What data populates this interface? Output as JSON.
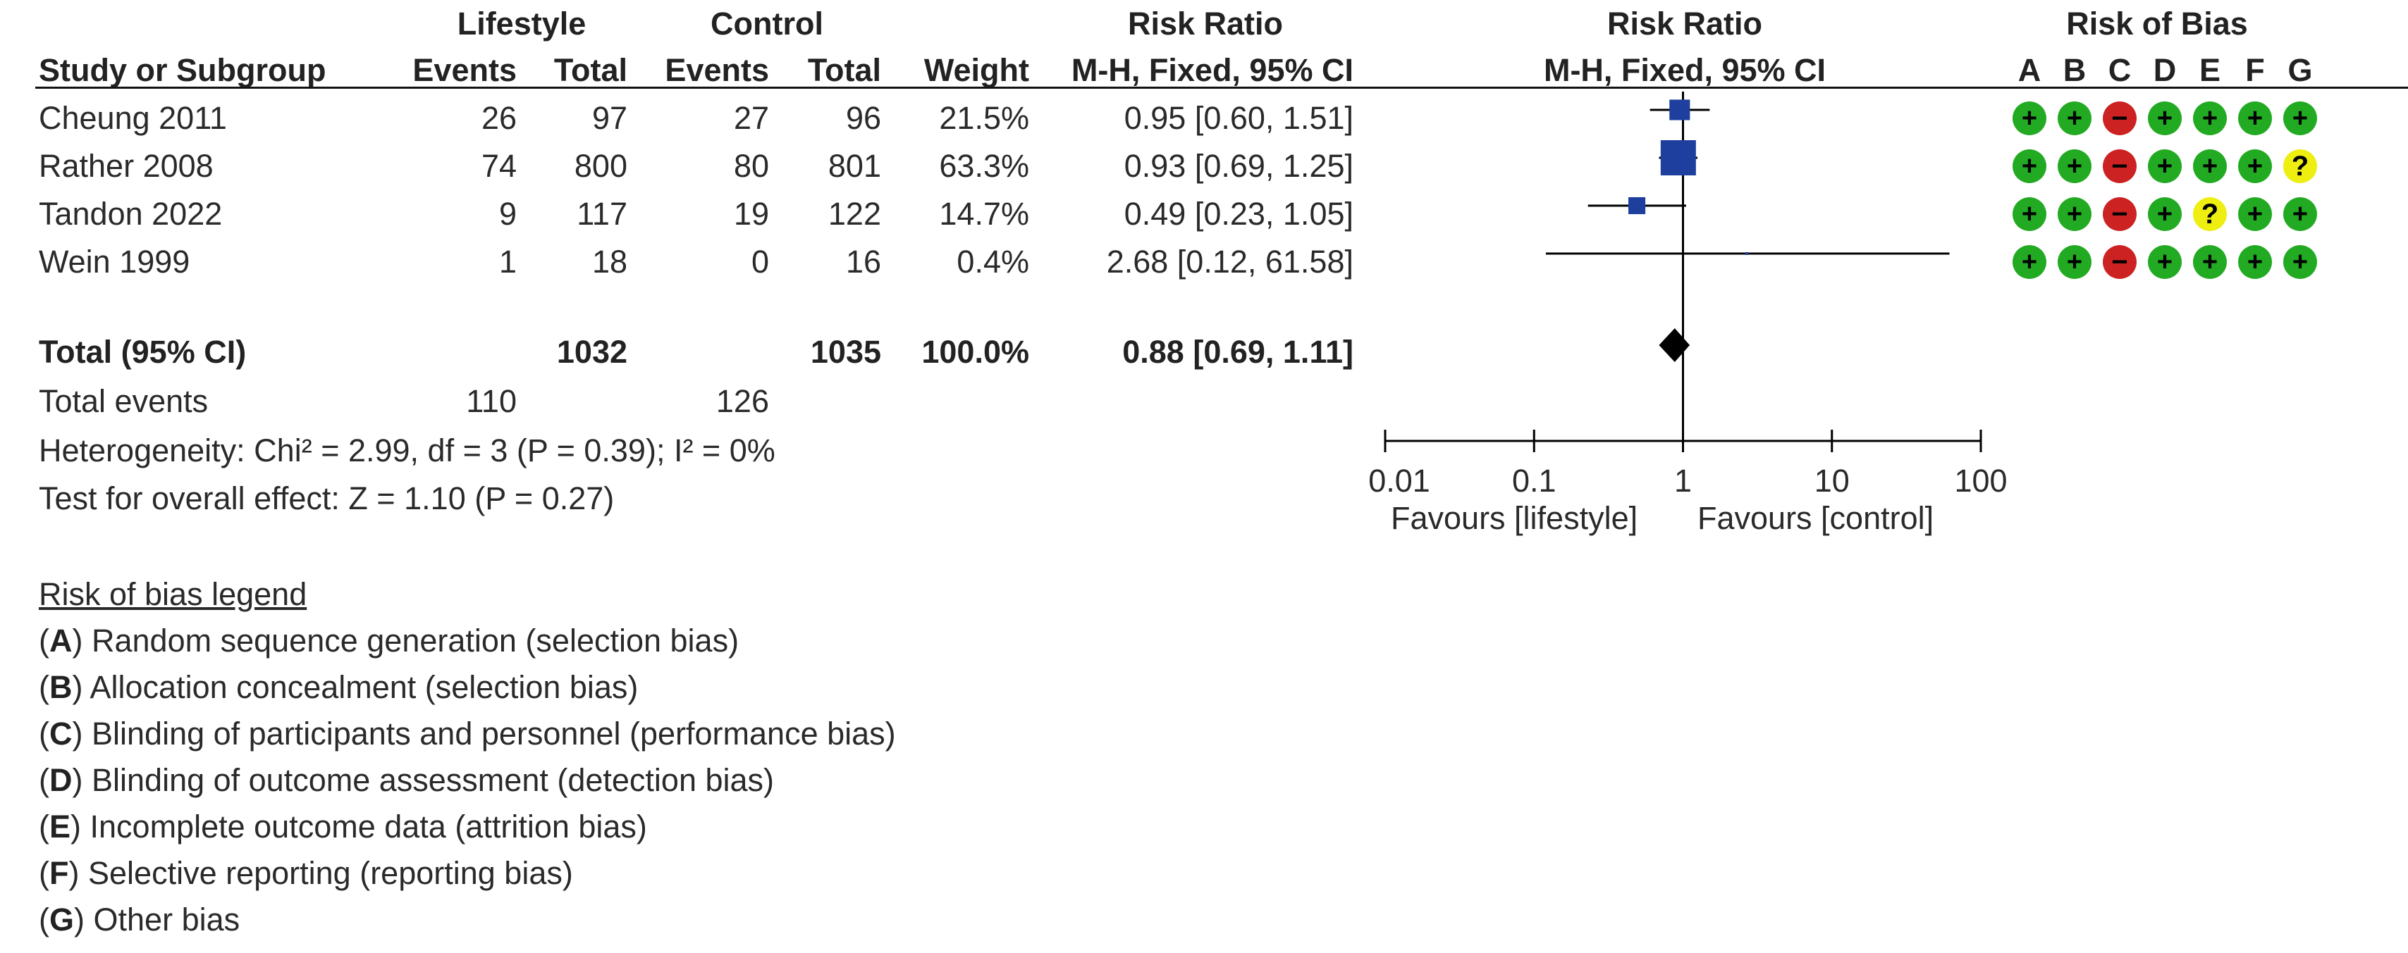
{
  "header": {
    "group1": "Lifestyle",
    "group2": "Control",
    "rr_title": "Risk Ratio",
    "plot_title": "Risk Ratio",
    "rob_title": "Risk of Bias",
    "study_col": "Study or Subgroup",
    "events": "Events",
    "total": "Total",
    "weight": "Weight",
    "method": "M-H, Fixed, 95% CI",
    "plot_method": "M-H, Fixed, 95% CI",
    "rob_letters": [
      "A",
      "B",
      "C",
      "D",
      "E",
      "F",
      "G"
    ]
  },
  "studies": [
    {
      "name": "Cheung 2011",
      "e1": "26",
      "n1": "97",
      "e2": "27",
      "n2": "96",
      "weight": "21.5%",
      "ci_text": "0.95 [0.60, 1.51]",
      "rr": 0.95,
      "lo": 0.6,
      "hi": 1.51,
      "w": 21.5,
      "rob": [
        "low",
        "low",
        "high",
        "low",
        "low",
        "low",
        "low"
      ]
    },
    {
      "name": "Rather 2008",
      "e1": "74",
      "n1": "800",
      "e2": "80",
      "n2": "801",
      "weight": "63.3%",
      "ci_text": "0.93 [0.69, 1.25]",
      "rr": 0.93,
      "lo": 0.69,
      "hi": 1.25,
      "w": 63.3,
      "rob": [
        "low",
        "low",
        "high",
        "low",
        "low",
        "low",
        "unclear"
      ]
    },
    {
      "name": "Tandon 2022",
      "e1": "9",
      "n1": "117",
      "e2": "19",
      "n2": "122",
      "weight": "14.7%",
      "ci_text": "0.49 [0.23, 1.05]",
      "rr": 0.49,
      "lo": 0.23,
      "hi": 1.05,
      "w": 14.7,
      "rob": [
        "low",
        "low",
        "high",
        "low",
        "unclear",
        "low",
        "low"
      ]
    },
    {
      "name": "Wein 1999",
      "e1": "1",
      "n1": "18",
      "e2": "0",
      "n2": "16",
      "weight": "0.4%",
      "ci_text": "2.68 [0.12, 61.58]",
      "rr": 2.68,
      "lo": 0.12,
      "hi": 61.58,
      "w": 0.4,
      "rob": [
        "low",
        "low",
        "high",
        "low",
        "low",
        "low",
        "low"
      ]
    }
  ],
  "total": {
    "label": "Total (95% CI)",
    "n1": "1032",
    "n2": "1035",
    "weight": "100.0%",
    "ci_text": "0.88 [0.69, 1.11]",
    "rr": 0.88,
    "lo": 0.69,
    "hi": 1.11
  },
  "total_events": {
    "label": "Total events",
    "e1": "110",
    "e2": "126"
  },
  "heterogeneity": "Heterogeneity: Chi² = 2.99, df = 3 (P = 0.39); I² = 0%",
  "overall_effect": "Test for overall effect: Z = 1.10 (P = 0.27)",
  "rob_symbols": {
    "low": "+",
    "high": "−",
    "unclear": "?"
  },
  "colors": {
    "low": "#22aa22",
    "high": "#cc2222",
    "unclear": "#eeee11",
    "square": "#1f3f9f",
    "diamond": "#000000"
  },
  "legend": {
    "title": "Risk of bias legend",
    "items": [
      {
        "letter": "A",
        "text": " Random sequence generation (selection bias)"
      },
      {
        "letter": "B",
        "text": " Allocation concealment (selection bias)"
      },
      {
        "letter": "C",
        "text": " Blinding of participants and personnel (performance bias)"
      },
      {
        "letter": "D",
        "text": " Blinding of outcome assessment (detection bias)"
      },
      {
        "letter": "E",
        "text": " Incomplete outcome data (attrition bias)"
      },
      {
        "letter": "F",
        "text": " Selective reporting (reporting bias)"
      },
      {
        "letter": "G",
        "text": " Other bias"
      }
    ]
  },
  "chart_data": {
    "type": "forest",
    "title": "Risk Ratio",
    "subtitle": "M-H, Fixed, 95% CI",
    "scale": "log",
    "xlim": [
      0.01,
      100
    ],
    "ticks": [
      0.01,
      0.1,
      1,
      10,
      100
    ],
    "tick_labels": [
      "0.01",
      "0.1",
      "1",
      "10",
      "100"
    ],
    "null_value": 1,
    "favours_left": "Favours [lifestyle]",
    "favours_right": "Favours [control]"
  }
}
